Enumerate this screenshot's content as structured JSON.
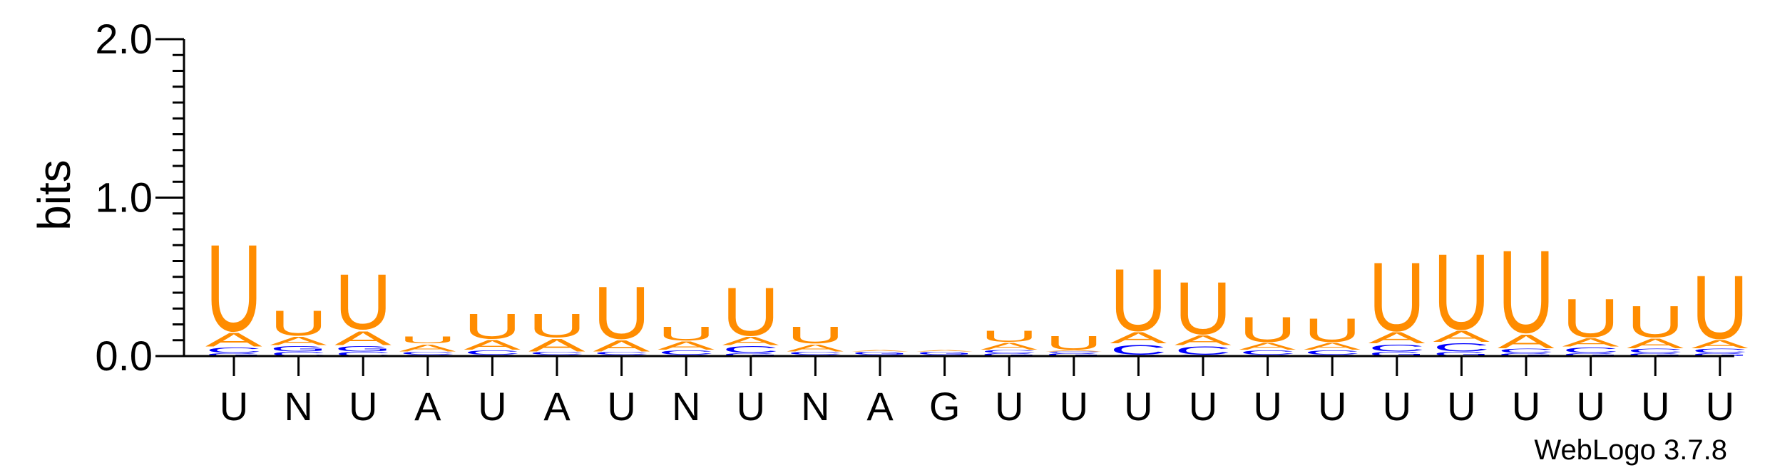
{
  "chart_data": {
    "type": "sequence-logo",
    "ylabel": "bits",
    "ylim": [
      0,
      2.0
    ],
    "yticks": [
      "0.0",
      "1.0",
      "2.0"
    ],
    "minor_tick_step": 0.1,
    "colors": {
      "U": "#ff8c00",
      "A": "#ff8c00",
      "C": "#0000ff",
      "G": "#0000ff"
    },
    "positions": [
      {
        "label": "U",
        "stack": [
          {
            "l": "G",
            "h": 0.02
          },
          {
            "l": "C",
            "h": 0.04
          },
          {
            "l": "A",
            "h": 0.1
          },
          {
            "l": "U",
            "h": 0.63
          }
        ]
      },
      {
        "label": "N",
        "stack": [
          {
            "l": "C",
            "h": 0.03
          },
          {
            "l": "G",
            "h": 0.04
          },
          {
            "l": "A",
            "h": 0.06
          },
          {
            "l": "U",
            "h": 0.18
          }
        ]
      },
      {
        "label": "U",
        "stack": [
          {
            "l": "C",
            "h": 0.03
          },
          {
            "l": "G",
            "h": 0.04
          },
          {
            "l": "A",
            "h": 0.1
          },
          {
            "l": "U",
            "h": 0.4
          }
        ]
      },
      {
        "label": "A",
        "stack": [
          {
            "l": "G",
            "h": 0.01
          },
          {
            "l": "C",
            "h": 0.02
          },
          {
            "l": "A",
            "h": 0.05
          },
          {
            "l": "U",
            "h": 0.05
          }
        ]
      },
      {
        "label": "U",
        "stack": [
          {
            "l": "G",
            "h": 0.01
          },
          {
            "l": "C",
            "h": 0.03
          },
          {
            "l": "A",
            "h": 0.07
          },
          {
            "l": "U",
            "h": 0.18
          }
        ]
      },
      {
        "label": "A",
        "stack": [
          {
            "l": "G",
            "h": 0.01
          },
          {
            "l": "C",
            "h": 0.02
          },
          {
            "l": "A",
            "h": 0.09
          },
          {
            "l": "U",
            "h": 0.17
          }
        ]
      },
      {
        "label": "U",
        "stack": [
          {
            "l": "G",
            "h": 0.01
          },
          {
            "l": "C",
            "h": 0.02
          },
          {
            "l": "A",
            "h": 0.08
          },
          {
            "l": "U",
            "h": 0.38
          }
        ]
      },
      {
        "label": "N",
        "stack": [
          {
            "l": "G",
            "h": 0.01
          },
          {
            "l": "C",
            "h": 0.03
          },
          {
            "l": "A",
            "h": 0.06
          },
          {
            "l": "U",
            "h": 0.1
          }
        ]
      },
      {
        "label": "U",
        "stack": [
          {
            "l": "G",
            "h": 0.02
          },
          {
            "l": "C",
            "h": 0.05
          },
          {
            "l": "A",
            "h": 0.06
          },
          {
            "l": "U",
            "h": 0.35
          }
        ]
      },
      {
        "label": "N",
        "stack": [
          {
            "l": "G",
            "h": 0.01
          },
          {
            "l": "C",
            "h": 0.02
          },
          {
            "l": "A",
            "h": 0.05
          },
          {
            "l": "U",
            "h": 0.12
          }
        ]
      },
      {
        "label": "A",
        "stack": [
          {
            "l": "C",
            "h": 0.01
          },
          {
            "l": "G",
            "h": 0.02
          },
          {
            "l": "A",
            "h": 0.01
          }
        ]
      },
      {
        "label": "G",
        "stack": [
          {
            "l": "C",
            "h": 0.01
          },
          {
            "l": "G",
            "h": 0.02
          },
          {
            "l": "A",
            "h": 0.01
          }
        ]
      },
      {
        "label": "U",
        "stack": [
          {
            "l": "G",
            "h": 0.02
          },
          {
            "l": "C",
            "h": 0.02
          },
          {
            "l": "A",
            "h": 0.05
          },
          {
            "l": "U",
            "h": 0.08
          }
        ]
      },
      {
        "label": "U",
        "stack": [
          {
            "l": "G",
            "h": 0.02
          },
          {
            "l": "C",
            "h": 0.01
          },
          {
            "l": "A",
            "h": 0.01
          },
          {
            "l": "U",
            "h": 0.1
          }
        ]
      },
      {
        "label": "U",
        "stack": [
          {
            "l": "G",
            "h": 0.01
          },
          {
            "l": "C",
            "h": 0.07
          },
          {
            "l": "A",
            "h": 0.08
          },
          {
            "l": "U",
            "h": 0.45
          }
        ]
      },
      {
        "label": "U",
        "stack": [
          {
            "l": "G",
            "h": 0.01
          },
          {
            "l": "C",
            "h": 0.06
          },
          {
            "l": "A",
            "h": 0.07
          },
          {
            "l": "U",
            "h": 0.38
          }
        ]
      },
      {
        "label": "U",
        "stack": [
          {
            "l": "G",
            "h": 0.01
          },
          {
            "l": "C",
            "h": 0.03
          },
          {
            "l": "A",
            "h": 0.05
          },
          {
            "l": "U",
            "h": 0.18
          }
        ]
      },
      {
        "label": "U",
        "stack": [
          {
            "l": "G",
            "h": 0.01
          },
          {
            "l": "C",
            "h": 0.03
          },
          {
            "l": "A",
            "h": 0.05
          },
          {
            "l": "U",
            "h": 0.17
          }
        ]
      },
      {
        "label": "U",
        "stack": [
          {
            "l": "G",
            "h": 0.03
          },
          {
            "l": "C",
            "h": 0.05
          },
          {
            "l": "A",
            "h": 0.08
          },
          {
            "l": "U",
            "h": 0.5
          }
        ]
      },
      {
        "label": "U",
        "stack": [
          {
            "l": "G",
            "h": 0.03
          },
          {
            "l": "C",
            "h": 0.06
          },
          {
            "l": "A",
            "h": 0.08
          },
          {
            "l": "U",
            "h": 0.55
          }
        ]
      },
      {
        "label": "U",
        "stack": [
          {
            "l": "G",
            "h": 0.02
          },
          {
            "l": "C",
            "h": 0.03
          },
          {
            "l": "A",
            "h": 0.1
          },
          {
            "l": "U",
            "h": 0.6
          }
        ]
      },
      {
        "label": "U",
        "stack": [
          {
            "l": "G",
            "h": 0.02
          },
          {
            "l": "C",
            "h": 0.04
          },
          {
            "l": "A",
            "h": 0.06
          },
          {
            "l": "U",
            "h": 0.28
          }
        ]
      },
      {
        "label": "U",
        "stack": [
          {
            "l": "G",
            "h": 0.02
          },
          {
            "l": "C",
            "h": 0.03
          },
          {
            "l": "A",
            "h": 0.07
          },
          {
            "l": "U",
            "h": 0.23
          }
        ]
      },
      {
        "label": "U",
        "stack": [
          {
            "l": "G",
            "h": 0.02
          },
          {
            "l": "C",
            "h": 0.03
          },
          {
            "l": "A",
            "h": 0.06
          },
          {
            "l": "U",
            "h": 0.46
          }
        ]
      }
    ]
  },
  "credit": "WebLogo 3.7.8"
}
